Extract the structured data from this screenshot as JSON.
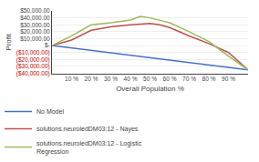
{
  "chart_data": {
    "type": "line",
    "xlabel": "Overall Population %",
    "ylabel": "Profit",
    "xlim": [
      0,
      100
    ],
    "xticks": [
      {
        "value": 10,
        "label": "10 %"
      },
      {
        "value": 20,
        "label": "20 %"
      },
      {
        "value": 30,
        "label": "30 %"
      },
      {
        "value": 40,
        "label": "40 %"
      },
      {
        "value": 50,
        "label": "50 %"
      },
      {
        "value": 60,
        "label": "60 %"
      },
      {
        "value": 70,
        "label": "70 %"
      },
      {
        "value": 80,
        "label": "80 %"
      },
      {
        "value": 90,
        "label": "90 %"
      }
    ],
    "ylim": [
      -40000,
      50000
    ],
    "yticks": [
      {
        "value": -40000,
        "label": "($40,000.00)"
      },
      {
        "value": -30000,
        "label": "($30,000.00)"
      },
      {
        "value": -20000,
        "label": "($20,000.00)"
      },
      {
        "value": -10000,
        "label": "($10,000.00)"
      },
      {
        "value": 0,
        "label": "$-"
      },
      {
        "value": 10000,
        "label": "$10,000.00"
      },
      {
        "value": 20000,
        "label": "$20,000.00"
      },
      {
        "value": 30000,
        "label": "$30,000.00"
      },
      {
        "value": 40000,
        "label": "$40,000.00"
      },
      {
        "value": 50000,
        "label": "$50,000.00"
      }
    ],
    "grid": true,
    "legend": "bottom",
    "series": [
      {
        "name": "No Model",
        "color": "#4472c4",
        "x": [
          0,
          100
        ],
        "values": [
          0,
          -35000
        ]
      },
      {
        "name": "solutions.neuroledDM03:12 - Nayes",
        "color": "#c0504d",
        "x": [
          0,
          10,
          20,
          30,
          40,
          45,
          50,
          55,
          60,
          70,
          80,
          90,
          100
        ],
        "values": [
          0,
          8000,
          22000,
          27000,
          30000,
          31000,
          32000,
          30000,
          26000,
          14000,
          3000,
          -10000,
          -35000
        ]
      },
      {
        "name": "solutions.neuroledDM03:12 - Logistic\nRegression",
        "color": "#9bbb59",
        "x": [
          0,
          10,
          20,
          30,
          40,
          45,
          50,
          55,
          60,
          70,
          80,
          90,
          100
        ],
        "values": [
          0,
          14000,
          30000,
          33000,
          37000,
          42000,
          40000,
          37000,
          33000,
          20000,
          6000,
          -15000,
          -35000
        ]
      }
    ]
  }
}
